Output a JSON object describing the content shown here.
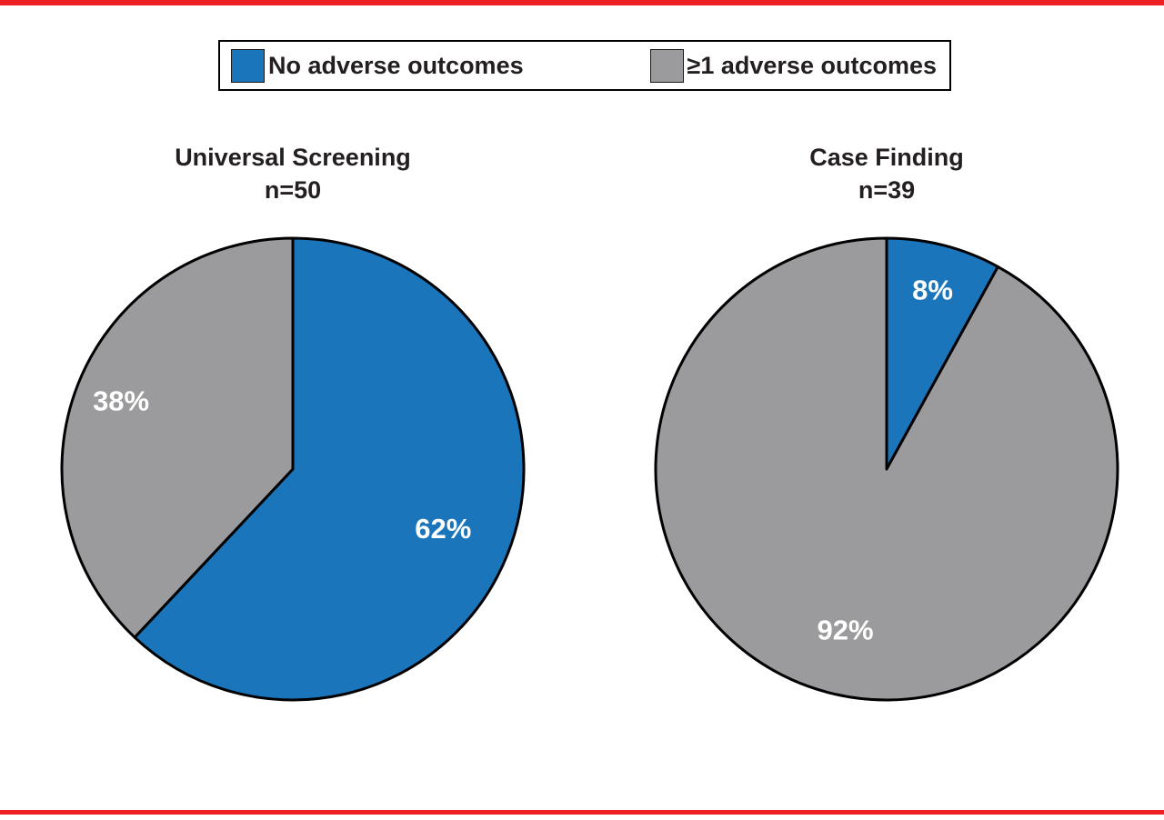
{
  "page": {
    "background": "#ffffff",
    "accent_rule_color": "#ed2024"
  },
  "legend": {
    "items": [
      {
        "label": "No adverse outcomes",
        "color": "#1b75bb"
      },
      {
        "label": "≥1 adverse outcomes",
        "color": "#9b9b9d"
      }
    ]
  },
  "chart_data": [
    {
      "type": "pie",
      "title": "Universal Screening",
      "subtitle": "n=50",
      "start_angle_deg": 0,
      "direction": "clockwise",
      "stroke_color": "#000000",
      "legend_position": "top",
      "slices": [
        {
          "label": "No adverse outcomes",
          "value": 62,
          "display": "62%",
          "color": "#1b75bb",
          "label_radius": 0.7
        },
        {
          "label": "≥1 adverse outcomes",
          "value": 38,
          "display": "38%",
          "color": "#9b9b9d",
          "label_radius": 0.8
        }
      ]
    },
    {
      "type": "pie",
      "title": "Case Finding",
      "subtitle": "n=39",
      "start_angle_deg": 0,
      "direction": "clockwise",
      "stroke_color": "#000000",
      "legend_position": "top",
      "slices": [
        {
          "label": "No adverse outcomes",
          "value": 8,
          "display": "8%",
          "color": "#1b75bb",
          "label_radius": 0.8
        },
        {
          "label": "≥1 adverse outcomes",
          "value": 92,
          "display": "92%",
          "color": "#9b9b9d",
          "label_radius": 0.72
        }
      ]
    }
  ]
}
